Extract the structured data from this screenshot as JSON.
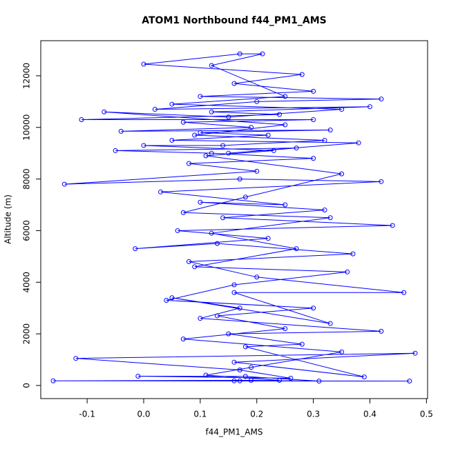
{
  "chart_data": {
    "type": "line",
    "title": "ATOM1 Northbound f44_PM1_AMS",
    "xlabel": "f44_PM1_AMS",
    "ylabel": "Altitude (m)",
    "color": "#0000ff",
    "x": [
      0.17,
      0.47,
      -0.16,
      0.19,
      0.31,
      0.18,
      -0.01,
      0.26,
      0.17,
      -0.12,
      0.48,
      0.16,
      0.39,
      0.18,
      0.28,
      0.15,
      0.42,
      0.1,
      0.17,
      0.05,
      0.33,
      0.16,
      0.46,
      0.2,
      0.08,
      0.37,
      0.13,
      -0.015,
      0.22,
      0.06,
      0.44,
      0.14,
      0.32,
      0.1,
      0.25,
      0.03,
      0.42,
      0.17,
      -0.14,
      0.2,
      0.08,
      0.3,
      0.12,
      -0.05,
      0.27,
      0.15,
      0.38,
      0.05,
      0.22,
      0.1,
      0.33,
      -0.04,
      0.19,
      0.07,
      0.3,
      -0.11,
      0.24,
      0.12,
      0.4,
      0.02,
      0.2,
      0.42,
      0.1,
      0.3,
      0.16,
      0.28,
      0.0,
      0.17,
      0.21,
      0.12,
      0.25,
      0.05,
      0.35,
      0.15,
      -0.07,
      0.25,
      0.09,
      0.32,
      0.14,
      0.0,
      0.23,
      0.11,
      0.35,
      0.18,
      0.07,
      0.33,
      0.12,
      0.27,
      0.09,
      0.36,
      0.16,
      0.04,
      0.3,
      0.13,
      0.25,
      0.07,
      0.35,
      0.19,
      0.11,
      0.24,
      0.16
    ],
    "values": [
      180,
      170,
      180,
      200,
      170,
      350,
      360,
      280,
      600,
      1050,
      1250,
      900,
      330,
      1500,
      1600,
      2000,
      2100,
      2600,
      3000,
      3400,
      2400,
      3600,
      3600,
      4200,
      4800,
      5100,
      5500,
      5300,
      5700,
      6000,
      6200,
      6500,
      6800,
      7100,
      7000,
      7500,
      7900,
      8000,
      7800,
      8300,
      8600,
      8800,
      9000,
      9100,
      9200,
      9000,
      9400,
      9500,
      9700,
      9800,
      9900,
      9850,
      10000,
      10200,
      10300,
      10300,
      10500,
      10600,
      10800,
      10700,
      11000,
      11100,
      11200,
      11400,
      11700,
      12050,
      12450,
      12850,
      12850,
      12400,
      11200,
      10900,
      10700,
      10400,
      10600,
      10100,
      9700,
      9500,
      9300,
      9300,
      9100,
      8900,
      8200,
      7300,
      6700,
      6500,
      5900,
      5300,
      4600,
      4400,
      3900,
      3300,
      3000,
      2700,
      2200,
      1800,
      1300,
      700,
      400,
      200,
      180
    ],
    "xlim": [
      -0.182,
      0.502
    ],
    "ylim": [
      -508,
      13360
    ],
    "xticks": [
      -0.1,
      {
        "value": 0,
        "label": "0.0"
      },
      0.1,
      0.2,
      0.3,
      0.4,
      0.5
    ],
    "yticks": [
      0,
      2000,
      4000,
      6000,
      8000,
      10000,
      12000
    ]
  }
}
